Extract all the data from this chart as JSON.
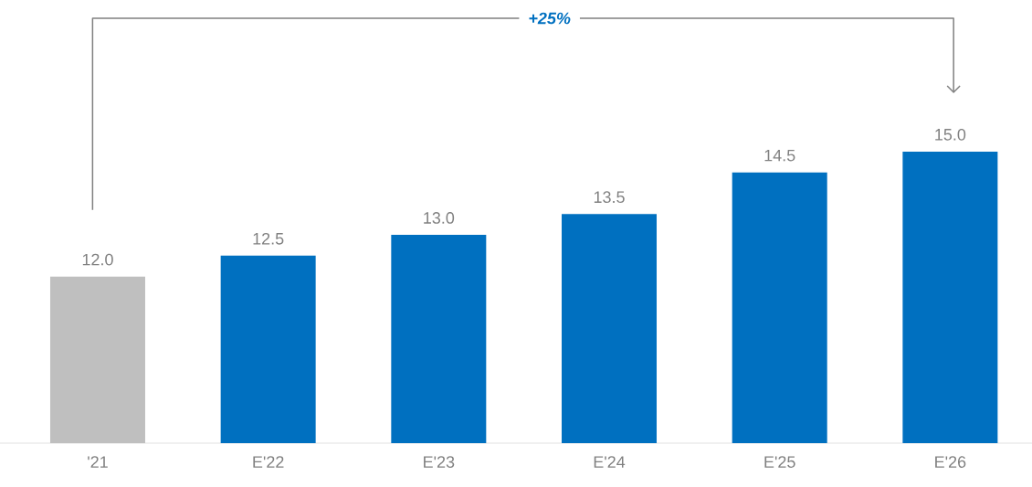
{
  "chart_data": {
    "type": "bar",
    "categories": [
      "'21",
      "E'22",
      "E'23",
      "E'24",
      "E'25",
      "E'26"
    ],
    "values": [
      12.0,
      12.5,
      13.0,
      13.5,
      14.5,
      15.0
    ],
    "colors": [
      "#bfbfbf",
      "#0070c0",
      "#0070c0",
      "#0070c0",
      "#0070c0",
      "#0070c0"
    ],
    "value_labels": [
      "12.0",
      "12.5",
      "13.0",
      "13.5",
      "14.5",
      "15.0"
    ],
    "ylim": [
      8,
      18.2
    ],
    "tick_labels": "x",
    "annotations": [
      "+25%"
    ]
  }
}
